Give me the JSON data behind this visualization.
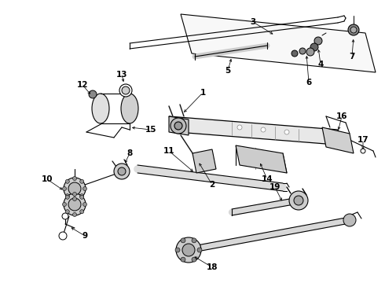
{
  "bg": "white",
  "lc": "black",
  "lw_thin": 0.7,
  "lw_med": 1.2,
  "lw_thick": 2.5,
  "fs_label": 7,
  "xlim": [
    0,
    490
  ],
  "ylim": [
    0,
    360
  ]
}
